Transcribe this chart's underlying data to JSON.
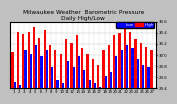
{
  "title": "Milwaukee Weather  Barometric Pressure",
  "subtitle": "Daily High/Low",
  "highs": [
    30.05,
    30.42,
    30.38,
    30.42,
    30.5,
    30.3,
    30.45,
    30.18,
    30.08,
    30.02,
    30.28,
    30.22,
    30.35,
    30.12,
    30.02,
    29.92,
    29.82,
    30.08,
    30.18,
    30.35,
    30.4,
    30.48,
    30.42,
    30.28,
    30.22,
    30.15,
    30.08
  ],
  "lows": [
    29.5,
    29.45,
    30.08,
    30.02,
    30.18,
    29.98,
    30.08,
    29.78,
    29.55,
    29.48,
    29.88,
    29.78,
    29.98,
    29.72,
    29.55,
    29.48,
    29.42,
    29.62,
    29.68,
    29.98,
    30.08,
    30.18,
    30.12,
    29.92,
    29.82,
    29.78,
    29.38
  ],
  "ylim_min": 29.4,
  "ylim_max": 30.6,
  "yticks": [
    29.4,
    29.6,
    29.8,
    30.0,
    30.2,
    30.4,
    30.6
  ],
  "ytick_labels": [
    "29.4",
    "29.6",
    "29.8",
    "30'0",
    "30.2",
    "30.4",
    "30.6"
  ],
  "n_days": 27,
  "high_color": "#ff0000",
  "low_color": "#0000ff",
  "bg_color": "#c0c0c0",
  "plot_bg": "#ffffff",
  "grid_color": "#808080",
  "legend_high_label": "High",
  "legend_low_label": "Low",
  "bar_width": 0.42,
  "title_fontsize": 4.2,
  "tick_fontsize": 2.8,
  "legend_fontsize": 3.0,
  "legend_box_color": "#0000ff",
  "legend_bar_color": "#ff0000"
}
